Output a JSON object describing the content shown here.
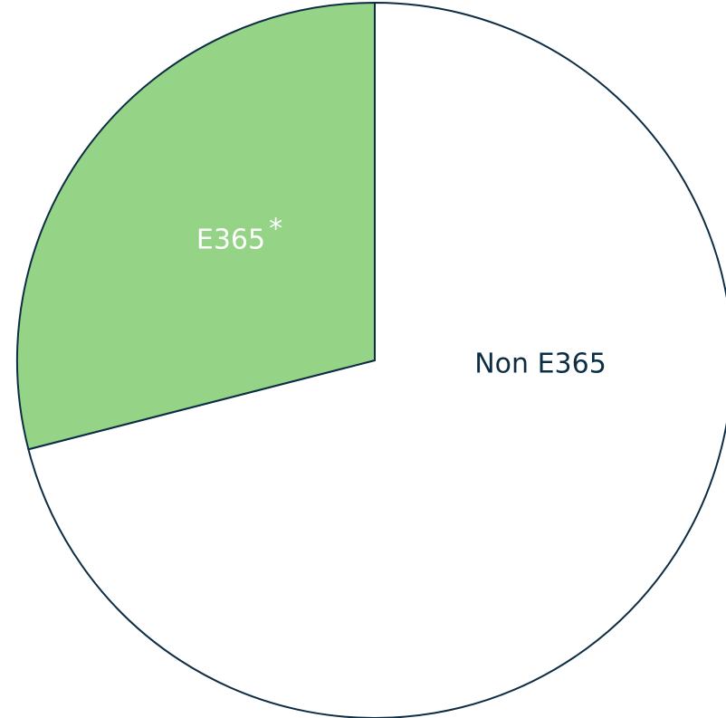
{
  "chart_data": {
    "type": "pie",
    "categories": [
      "Non E365",
      "E365"
    ],
    "values": [
      71,
      29
    ],
    "colors": [
      "#ffffff",
      "#95d386"
    ],
    "label_colors": [
      "#0d2d45",
      "#ffffff"
    ],
    "annotation": "*",
    "stroke": "#0d2d45"
  }
}
